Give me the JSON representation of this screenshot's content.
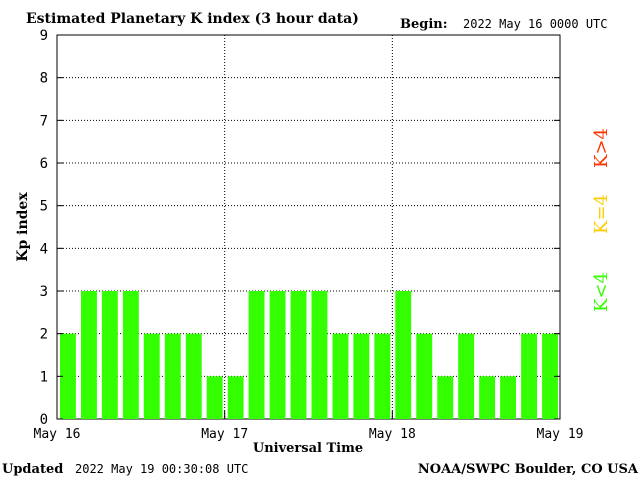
{
  "header": {
    "title": "Estimated Planetary K index (3 hour data)",
    "begin_label": "Begin:",
    "begin_value": "2022 May 16 0000 UTC"
  },
  "footer": {
    "updated_label": "Updated",
    "updated_value": "2022 May 19 00:30:08 UTC",
    "source": "NOAA/SWPC Boulder, CO USA"
  },
  "legend": [
    {
      "label": "K>4",
      "color": "#ff3300"
    },
    {
      "label": "K=4",
      "color": "#ffcc00"
    },
    {
      "label": "K<4",
      "color": "#33ff00"
    }
  ],
  "chart_data": {
    "type": "bar",
    "title": "Estimated Planetary K index (3 hour data)",
    "xlabel": "Universal Time",
    "ylabel": "Kp index",
    "ylim": [
      0,
      9
    ],
    "yticks": [
      0,
      1,
      2,
      3,
      4,
      5,
      6,
      7,
      8,
      9
    ],
    "xtick_labels": [
      "May 16",
      "May 17",
      "May 18",
      "May 19"
    ],
    "grid": true,
    "bar_color": "#33ff00",
    "values": [
      2,
      3,
      3,
      3,
      2,
      2,
      2,
      1,
      1,
      3,
      3,
      3,
      3,
      2,
      2,
      2,
      3,
      2,
      1,
      2,
      1,
      1,
      2,
      2
    ]
  }
}
